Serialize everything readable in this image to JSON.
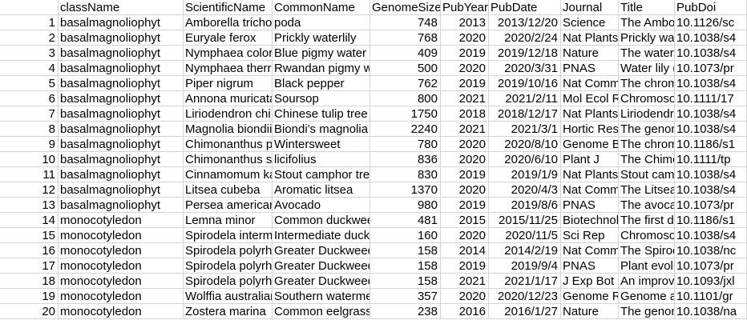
{
  "columns": [
    "",
    "className",
    "ScientificName",
    "CommonName",
    "GenomeSize",
    "PubYear",
    "PubDate",
    "Journal",
    "Title",
    "PubDoi"
  ],
  "rows": [
    [
      "1",
      "basalmagnoliophyt",
      "Amborella tricho",
      "poda",
      "748",
      "2013",
      "2013/12/20",
      "Science",
      "The Ambo",
      "10.1126/sc"
    ],
    [
      "2",
      "basalmagnoliophyt",
      "Euryale ferox",
      "Prickly waterlily",
      "768",
      "2020",
      "2020/2/24",
      "Nat Plants",
      "Prickly wat",
      "10.1038/s4"
    ],
    [
      "3",
      "basalmagnoliophyt",
      "Nymphaea color",
      "Blue pigmy water l",
      "409",
      "2019",
      "2019/12/18",
      "Nature",
      "The water",
      "10.1038/s4"
    ],
    [
      "4",
      "basalmagnoliophyt",
      "Nymphaea therr",
      "Rwandan pigmy w",
      "500",
      "2020",
      "2020/3/31",
      "PNAS",
      "Water lily (",
      "10.1073/pr"
    ],
    [
      "5",
      "basalmagnoliophyt",
      "Piper nigrum",
      "Black pepper",
      "762",
      "2019",
      "2019/10/16",
      "Nat Comm",
      "The chrom",
      "10.1038/s4"
    ],
    [
      "6",
      "basalmagnoliophyt",
      "Annona muricata",
      "Soursop",
      "800",
      "2021",
      "2021/2/11",
      "Mol Ecol R",
      "Chromoso",
      "10.1111/17"
    ],
    [
      "7",
      "basalmagnoliophyt",
      "Liriodendron chi",
      "Chinese tulip tree",
      "1750",
      "2018",
      "2018/12/17",
      "Nat Plants",
      "Liriodendr",
      "10.1038/s4"
    ],
    [
      "8",
      "basalmagnoliophyt",
      "Magnolia biondii",
      "Biondi's magnolia",
      "2240",
      "2021",
      "2021/3/1",
      "Hortic Res",
      "The genon",
      "10.1038/s4"
    ],
    [
      "9",
      "basalmagnoliophyt",
      "Chimonanthus pi",
      "Wintersweet",
      "780",
      "2020",
      "2020/8/10",
      "Genome B",
      "The chrom",
      "10.1186/s1"
    ],
    [
      "10",
      "basalmagnoliophyt",
      "Chimonanthus sa",
      "licifolius",
      "836",
      "2020",
      "2020/6/10",
      "Plant J",
      "The Chimo",
      "10.1111/tp"
    ],
    [
      "11",
      "basalmagnoliophyt",
      "Cinnamomum ka",
      "Stout camphor tre",
      "830",
      "2019",
      "2019/1/9",
      "Nat Plants",
      "Stout camp",
      "10.1038/s4"
    ],
    [
      "12",
      "basalmagnoliophyt",
      "Litsea cubeba",
      "Aromatic litsea",
      "1370",
      "2020",
      "2020/4/3",
      "Nat Comm",
      "The Litsea",
      "10.1038/s4"
    ],
    [
      "13",
      "basalmagnoliophyt",
      "Persea american",
      "Avocado",
      "980",
      "2019",
      "2019/8/6",
      "PNAS",
      "The avoca",
      "10.1073/pr"
    ],
    [
      "14",
      "monocotyledon",
      "Lemna minor",
      "Common duckwee",
      "481",
      "2015",
      "2015/11/25",
      "Biotechnol",
      "The first dr",
      "10.1186/s1"
    ],
    [
      "15",
      "monocotyledon",
      "Spirodela interm",
      "Intermediate duck",
      "160",
      "2020",
      "2020/11/5",
      "Sci Rep",
      "Chromoso",
      "10.1038/s4"
    ],
    [
      "16",
      "monocotyledon",
      "Spirodela polyrh",
      "Greater Duckweed",
      "158",
      "2014",
      "2014/2/19",
      "Nat Comm",
      "The Spiroc",
      "10.1038/nc"
    ],
    [
      "17",
      "monocotyledon",
      "Spirodela polyrh",
      "Greater Duckweed",
      "158",
      "2019",
      "2019/9/4",
      "PNAS",
      "Plant evolu",
      "10.1073/pr"
    ],
    [
      "18",
      "monocotyledon",
      "Spirodela polyrh",
      "Greater Duckweed",
      "158",
      "2021",
      "2021/1/17",
      "J Exp Bot",
      "An improv",
      "10.1093/jxl"
    ],
    [
      "19",
      "monocotyledon",
      "Wolffia australiar",
      "Southern waterme",
      "357",
      "2020",
      "2020/12/23",
      "Genome R",
      "Genome a",
      "10.1101/gr"
    ],
    [
      "20",
      "monocotyledon",
      "Zostera marina",
      "Common eelgrass",
      "238",
      "2016",
      "2016/1/27",
      "Nature",
      "The genon",
      "10.1038/na"
    ]
  ]
}
